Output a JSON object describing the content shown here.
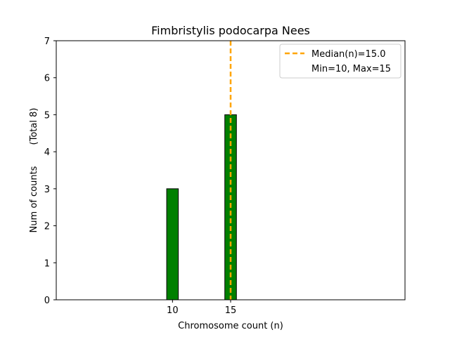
{
  "chart_data": {
    "type": "bar",
    "title": "Fimbristylis podocarpa Nees",
    "xlabel": "Chromosome count (n)",
    "ylabel": "Num of counts",
    "ylabel_total": "(Total 8)",
    "x": [
      10,
      15
    ],
    "values": [
      3,
      5
    ],
    "bar_width": 1,
    "xlim": [
      0,
      30
    ],
    "ylim": [
      0,
      7
    ],
    "xticks": [
      10,
      15
    ],
    "yticks": [
      0,
      1,
      2,
      3,
      4,
      5,
      6,
      7
    ],
    "baseline_range": [
      0,
      18.5
    ],
    "median": 15.0,
    "legend": {
      "placement": "top-right",
      "entries": [
        "Median(n)=15.0",
        "Min=10, Max=15"
      ]
    },
    "colors": {
      "bar_fill": "#008000",
      "bar_edge": "#000000",
      "median_line": "#FFA500"
    },
    "grid": false
  }
}
